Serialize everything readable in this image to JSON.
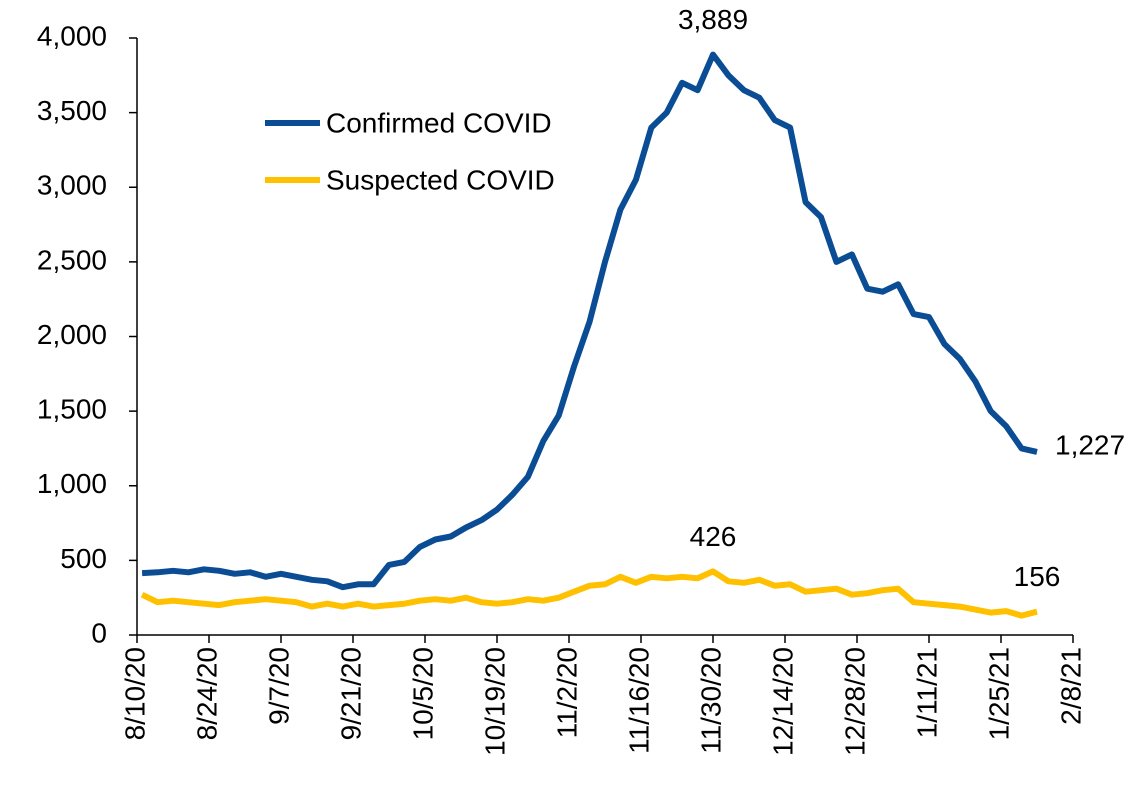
{
  "chart_data": {
    "type": "line",
    "x": [
      "8/11/20",
      "8/14/20",
      "8/17/20",
      "8/20/20",
      "8/23/20",
      "8/26/20",
      "8/29/20",
      "9/1/20",
      "9/4/20",
      "9/7/20",
      "9/10/20",
      "9/13/20",
      "9/16/20",
      "9/19/20",
      "9/22/20",
      "9/25/20",
      "9/28/20",
      "10/1/20",
      "10/4/20",
      "10/7/20",
      "10/10/20",
      "10/13/20",
      "10/16/20",
      "10/19/20",
      "10/22/20",
      "10/25/20",
      "10/28/20",
      "10/31/20",
      "11/3/20",
      "11/6/20",
      "11/9/20",
      "11/12/20",
      "11/15/20",
      "11/18/20",
      "11/21/20",
      "11/24/20",
      "11/27/20",
      "11/30/20",
      "12/3/20",
      "12/6/20",
      "12/9/20",
      "12/12/20",
      "12/15/20",
      "12/18/20",
      "12/21/20",
      "12/24/20",
      "12/27/20",
      "12/30/20",
      "1/2/21",
      "1/5/21",
      "1/8/21",
      "1/11/21",
      "1/14/21",
      "1/17/21",
      "1/20/21",
      "1/23/21",
      "1/26/21",
      "1/29/21",
      "2/1/21"
    ],
    "series": [
      {
        "name": "Confirmed COVID",
        "color": "#0b4d95",
        "values": [
          415,
          420,
          430,
          420,
          440,
          430,
          410,
          420,
          390,
          410,
          390,
          370,
          360,
          320,
          340,
          340,
          470,
          490,
          590,
          640,
          660,
          720,
          770,
          840,
          940,
          1060,
          1300,
          1470,
          1800,
          2100,
          2500,
          2850,
          3050,
          3400,
          3500,
          3700,
          3650,
          3889,
          3750,
          3650,
          3600,
          3450,
          3400,
          2900,
          2800,
          2500,
          2550,
          2320,
          2300,
          2350,
          2150,
          2130,
          1950,
          1850,
          1700,
          1500,
          1400,
          1250,
          1227
        ],
        "value_labels": [
          null,
          null,
          null,
          null,
          null,
          null,
          null,
          null,
          null,
          null,
          null,
          null,
          null,
          null,
          null,
          null,
          null,
          null,
          null,
          null,
          null,
          null,
          null,
          null,
          null,
          null,
          null,
          null,
          null,
          null,
          null,
          null,
          null,
          null,
          null,
          null,
          null,
          "3,889",
          null,
          null,
          null,
          null,
          null,
          null,
          null,
          null,
          null,
          null,
          null,
          null,
          null,
          null,
          null,
          null,
          null,
          null,
          null,
          null,
          "1,227"
        ]
      },
      {
        "name": "Suspected COVID",
        "color": "#ffc000",
        "values": [
          270,
          220,
          230,
          220,
          210,
          200,
          220,
          230,
          240,
          230,
          220,
          190,
          210,
          190,
          210,
          190,
          200,
          210,
          230,
          240,
          230,
          250,
          220,
          210,
          220,
          240,
          230,
          250,
          290,
          330,
          340,
          390,
          350,
          390,
          380,
          390,
          380,
          426,
          360,
          350,
          370,
          330,
          340,
          290,
          300,
          310,
          270,
          280,
          300,
          310,
          220,
          210,
          200,
          190,
          170,
          150,
          160,
          130,
          156
        ],
        "value_labels": [
          null,
          null,
          null,
          null,
          null,
          null,
          null,
          null,
          null,
          null,
          null,
          null,
          null,
          null,
          null,
          null,
          null,
          null,
          null,
          null,
          null,
          null,
          null,
          null,
          null,
          null,
          null,
          null,
          null,
          null,
          null,
          null,
          null,
          null,
          null,
          null,
          null,
          "426",
          null,
          null,
          null,
          null,
          null,
          null,
          null,
          null,
          null,
          null,
          null,
          null,
          null,
          null,
          null,
          null,
          null,
          null,
          null,
          null,
          "156"
        ]
      }
    ],
    "xlim": [
      "8/10/20",
      "2/8/21"
    ],
    "xticks": [
      "8/10/20",
      "8/24/20",
      "9/7/20",
      "9/21/20",
      "10/5/20",
      "10/19/20",
      "11/2/20",
      "11/16/20",
      "11/30/20",
      "12/14/20",
      "12/28/20",
      "1/11/21",
      "1/25/21",
      "2/8/21"
    ],
    "ylim": [
      0,
      4000
    ],
    "yticks": [
      0,
      500,
      {
        "value": 1000,
        "label": "1,000"
      },
      {
        "value": 1500,
        "label": "1,500"
      },
      {
        "value": 2000,
        "label": "2,000"
      },
      {
        "value": 2500,
        "label": "2,500"
      },
      {
        "value": 3000,
        "label": "3,000"
      },
      {
        "value": 3500,
        "label": "3,500"
      },
      {
        "value": 4000,
        "label": "4,000"
      }
    ],
    "grid": false
  }
}
